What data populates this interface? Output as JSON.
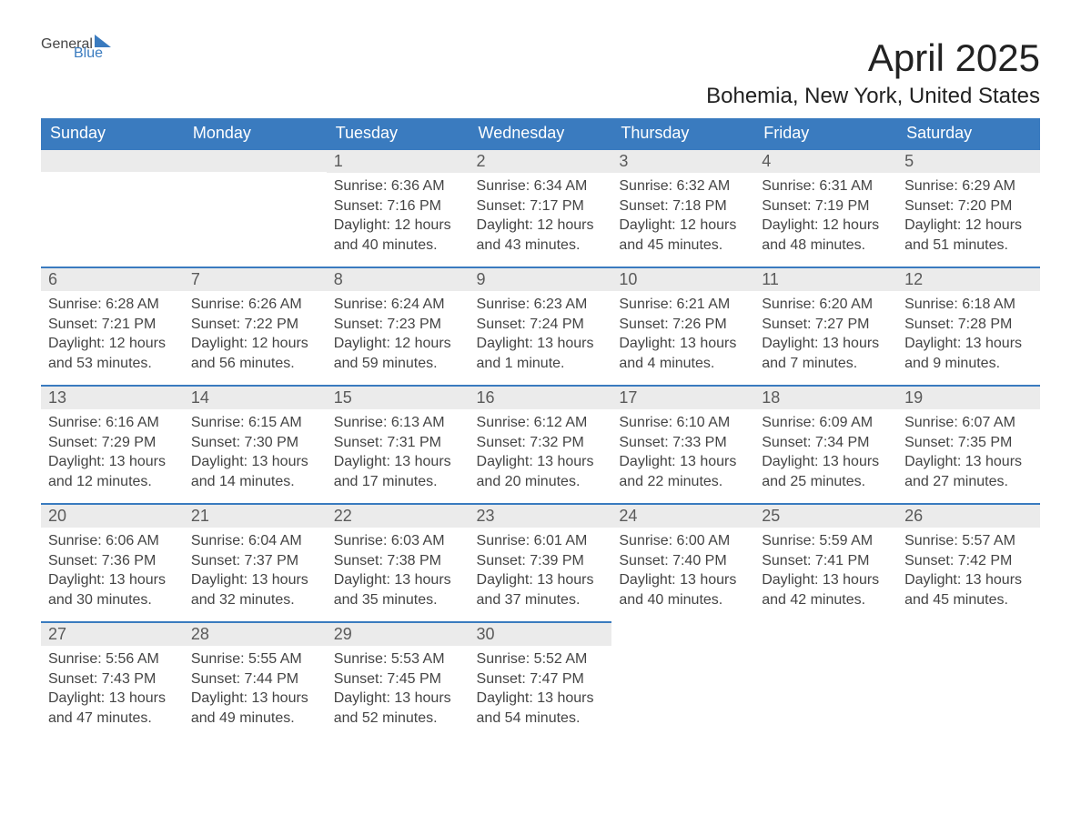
{
  "brand": {
    "part1": "General",
    "part2": "Blue"
  },
  "title": "April 2025",
  "location": "Bohemia, New York, United States",
  "colors": {
    "header_bg": "#3a7bbf",
    "header_text": "#ffffff",
    "daynum_bg": "#ebebeb",
    "daynum_border": "#3a7bbf",
    "body_text": "#444444",
    "page_bg": "#ffffff"
  },
  "columns": [
    "Sunday",
    "Monday",
    "Tuesday",
    "Wednesday",
    "Thursday",
    "Friday",
    "Saturday"
  ],
  "weeks": [
    [
      {
        "day": "",
        "sunrise": "",
        "sunset": "",
        "daylight": ""
      },
      {
        "day": "",
        "sunrise": "",
        "sunset": "",
        "daylight": ""
      },
      {
        "day": "1",
        "sunrise": "Sunrise: 6:36 AM",
        "sunset": "Sunset: 7:16 PM",
        "daylight": "Daylight: 12 hours and 40 minutes."
      },
      {
        "day": "2",
        "sunrise": "Sunrise: 6:34 AM",
        "sunset": "Sunset: 7:17 PM",
        "daylight": "Daylight: 12 hours and 43 minutes."
      },
      {
        "day": "3",
        "sunrise": "Sunrise: 6:32 AM",
        "sunset": "Sunset: 7:18 PM",
        "daylight": "Daylight: 12 hours and 45 minutes."
      },
      {
        "day": "4",
        "sunrise": "Sunrise: 6:31 AM",
        "sunset": "Sunset: 7:19 PM",
        "daylight": "Daylight: 12 hours and 48 minutes."
      },
      {
        "day": "5",
        "sunrise": "Sunrise: 6:29 AM",
        "sunset": "Sunset: 7:20 PM",
        "daylight": "Daylight: 12 hours and 51 minutes."
      }
    ],
    [
      {
        "day": "6",
        "sunrise": "Sunrise: 6:28 AM",
        "sunset": "Sunset: 7:21 PM",
        "daylight": "Daylight: 12 hours and 53 minutes."
      },
      {
        "day": "7",
        "sunrise": "Sunrise: 6:26 AM",
        "sunset": "Sunset: 7:22 PM",
        "daylight": "Daylight: 12 hours and 56 minutes."
      },
      {
        "day": "8",
        "sunrise": "Sunrise: 6:24 AM",
        "sunset": "Sunset: 7:23 PM",
        "daylight": "Daylight: 12 hours and 59 minutes."
      },
      {
        "day": "9",
        "sunrise": "Sunrise: 6:23 AM",
        "sunset": "Sunset: 7:24 PM",
        "daylight": "Daylight: 13 hours and 1 minute."
      },
      {
        "day": "10",
        "sunrise": "Sunrise: 6:21 AM",
        "sunset": "Sunset: 7:26 PM",
        "daylight": "Daylight: 13 hours and 4 minutes."
      },
      {
        "day": "11",
        "sunrise": "Sunrise: 6:20 AM",
        "sunset": "Sunset: 7:27 PM",
        "daylight": "Daylight: 13 hours and 7 minutes."
      },
      {
        "day": "12",
        "sunrise": "Sunrise: 6:18 AM",
        "sunset": "Sunset: 7:28 PM",
        "daylight": "Daylight: 13 hours and 9 minutes."
      }
    ],
    [
      {
        "day": "13",
        "sunrise": "Sunrise: 6:16 AM",
        "sunset": "Sunset: 7:29 PM",
        "daylight": "Daylight: 13 hours and 12 minutes."
      },
      {
        "day": "14",
        "sunrise": "Sunrise: 6:15 AM",
        "sunset": "Sunset: 7:30 PM",
        "daylight": "Daylight: 13 hours and 14 minutes."
      },
      {
        "day": "15",
        "sunrise": "Sunrise: 6:13 AM",
        "sunset": "Sunset: 7:31 PM",
        "daylight": "Daylight: 13 hours and 17 minutes."
      },
      {
        "day": "16",
        "sunrise": "Sunrise: 6:12 AM",
        "sunset": "Sunset: 7:32 PM",
        "daylight": "Daylight: 13 hours and 20 minutes."
      },
      {
        "day": "17",
        "sunrise": "Sunrise: 6:10 AM",
        "sunset": "Sunset: 7:33 PM",
        "daylight": "Daylight: 13 hours and 22 minutes."
      },
      {
        "day": "18",
        "sunrise": "Sunrise: 6:09 AM",
        "sunset": "Sunset: 7:34 PM",
        "daylight": "Daylight: 13 hours and 25 minutes."
      },
      {
        "day": "19",
        "sunrise": "Sunrise: 6:07 AM",
        "sunset": "Sunset: 7:35 PM",
        "daylight": "Daylight: 13 hours and 27 minutes."
      }
    ],
    [
      {
        "day": "20",
        "sunrise": "Sunrise: 6:06 AM",
        "sunset": "Sunset: 7:36 PM",
        "daylight": "Daylight: 13 hours and 30 minutes."
      },
      {
        "day": "21",
        "sunrise": "Sunrise: 6:04 AM",
        "sunset": "Sunset: 7:37 PM",
        "daylight": "Daylight: 13 hours and 32 minutes."
      },
      {
        "day": "22",
        "sunrise": "Sunrise: 6:03 AM",
        "sunset": "Sunset: 7:38 PM",
        "daylight": "Daylight: 13 hours and 35 minutes."
      },
      {
        "day": "23",
        "sunrise": "Sunrise: 6:01 AM",
        "sunset": "Sunset: 7:39 PM",
        "daylight": "Daylight: 13 hours and 37 minutes."
      },
      {
        "day": "24",
        "sunrise": "Sunrise: 6:00 AM",
        "sunset": "Sunset: 7:40 PM",
        "daylight": "Daylight: 13 hours and 40 minutes."
      },
      {
        "day": "25",
        "sunrise": "Sunrise: 5:59 AM",
        "sunset": "Sunset: 7:41 PM",
        "daylight": "Daylight: 13 hours and 42 minutes."
      },
      {
        "day": "26",
        "sunrise": "Sunrise: 5:57 AM",
        "sunset": "Sunset: 7:42 PM",
        "daylight": "Daylight: 13 hours and 45 minutes."
      }
    ],
    [
      {
        "day": "27",
        "sunrise": "Sunrise: 5:56 AM",
        "sunset": "Sunset: 7:43 PM",
        "daylight": "Daylight: 13 hours and 47 minutes."
      },
      {
        "day": "28",
        "sunrise": "Sunrise: 5:55 AM",
        "sunset": "Sunset: 7:44 PM",
        "daylight": "Daylight: 13 hours and 49 minutes."
      },
      {
        "day": "29",
        "sunrise": "Sunrise: 5:53 AM",
        "sunset": "Sunset: 7:45 PM",
        "daylight": "Daylight: 13 hours and 52 minutes."
      },
      {
        "day": "30",
        "sunrise": "Sunrise: 5:52 AM",
        "sunset": "Sunset: 7:47 PM",
        "daylight": "Daylight: 13 hours and 54 minutes."
      },
      {
        "day": "",
        "sunrise": "",
        "sunset": "",
        "daylight": ""
      },
      {
        "day": "",
        "sunrise": "",
        "sunset": "",
        "daylight": ""
      },
      {
        "day": "",
        "sunrise": "",
        "sunset": "",
        "daylight": ""
      }
    ]
  ]
}
